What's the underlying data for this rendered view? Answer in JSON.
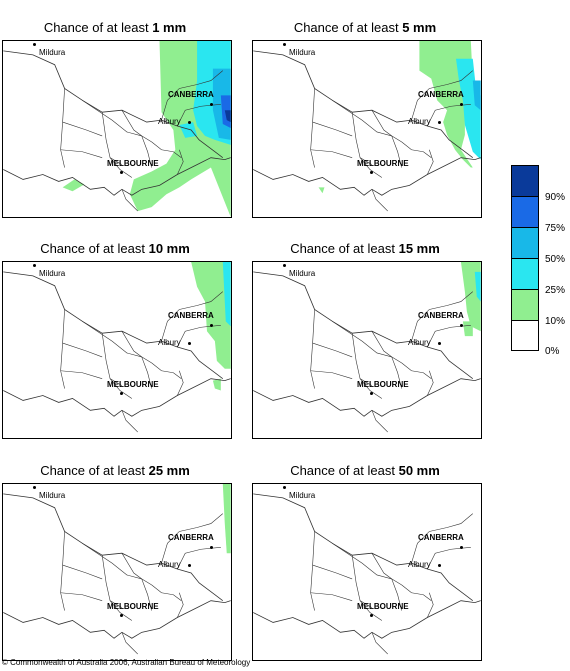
{
  "panels": [
    {
      "title_prefix": "Chance of at least ",
      "threshold": "1 mm"
    },
    {
      "title_prefix": "Chance of at least ",
      "threshold": "5 mm"
    },
    {
      "title_prefix": "Chance of at least ",
      "threshold": "10 mm"
    },
    {
      "title_prefix": "Chance of at least ",
      "threshold": "15 mm"
    },
    {
      "title_prefix": "Chance of at least ",
      "threshold": "25 mm"
    },
    {
      "title_prefix": "Chance of at least ",
      "threshold": "50 mm"
    }
  ],
  "cities": {
    "mildura": "Mildura",
    "canberra": "CANBERRA",
    "albury": "Albury",
    "melbourne": "MELBOURNE"
  },
  "legend": {
    "labels": [
      "90%",
      "75%",
      "50%",
      "25%",
      "10%",
      "0%"
    ],
    "colors": [
      "#0a3a9a",
      "#1a6ae6",
      "#18b8e8",
      "#2ae6f0",
      "#90ee90",
      "#ffffff"
    ]
  },
  "copyright": "© Commonwealth of Australia 2006, Australian Bureau of Meteorology"
}
